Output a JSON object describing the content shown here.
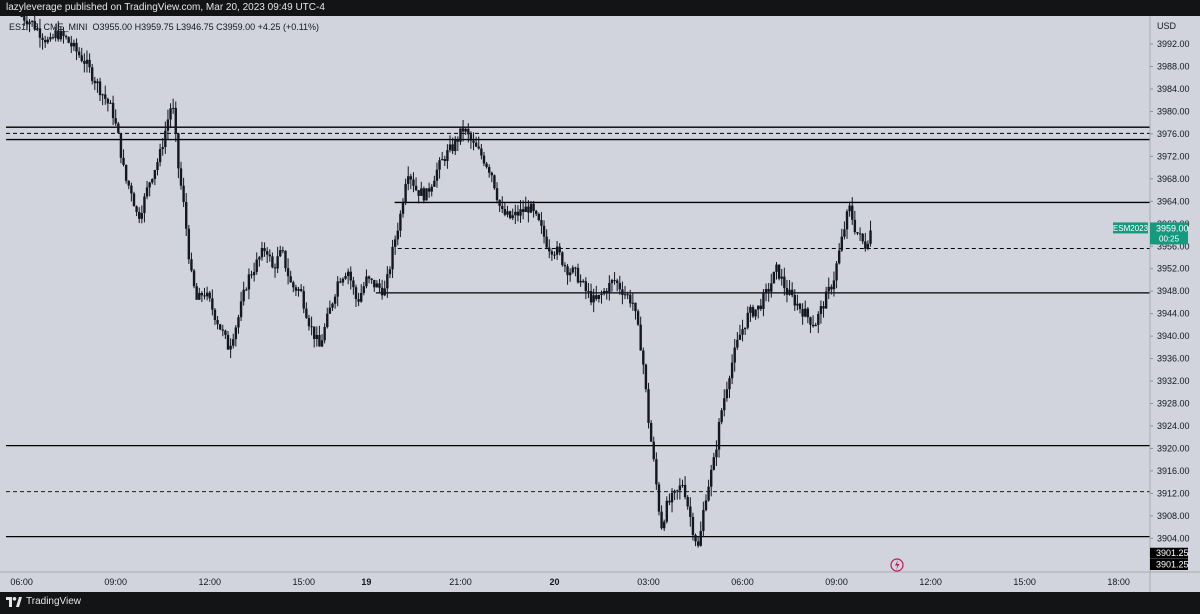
{
  "header": {
    "published_text": "lazyleverage published on TradingView.com, Mar 20, 2023 09:49 UTC-4"
  },
  "legend": {
    "symbol": "ES1!, 5, CME_MINI",
    "ohlc": "O3955.00  H3959.75  L3946.75  C3959.00  +4.25 (+0.11%)"
  },
  "footer": {
    "brand": "TradingView"
  },
  "colors": {
    "background": "#d1d4dc",
    "candle": "#131722",
    "label_green": "#159a7f",
    "label_black": "#000000",
    "line": "#000000"
  },
  "chart_data": {
    "type": "candlestick",
    "currency_label": "USD",
    "price_axis": {
      "min": 3898,
      "max": 3997,
      "ticks": [
        3992,
        3988,
        3984,
        3980,
        3976,
        3972,
        3968,
        3964,
        3960,
        3956,
        3952,
        3948,
        3944,
        3940,
        3936,
        3932,
        3928,
        3924,
        3920,
        3916,
        3912,
        3908,
        3904
      ],
      "tick_labels": [
        "3992.00",
        "3988.00",
        "3984.00",
        "3980.00",
        "3976.00",
        "3972.00",
        "3968.00",
        "3964.00",
        "3960.00",
        "3956.00",
        "3952.00",
        "3948.00",
        "3944.00",
        "3940.00",
        "3936.00",
        "3932.00",
        "3928.00",
        "3924.00",
        "3920.00",
        "3916.00",
        "3912.00",
        "3908.00",
        "3904.00"
      ]
    },
    "time_axis": {
      "labels": [
        {
          "label": "06:00",
          "t": 0
        },
        {
          "label": "09:00",
          "t": 3
        },
        {
          "label": "12:00",
          "t": 6
        },
        {
          "label": "15:00",
          "t": 9
        },
        {
          "label": "19",
          "t": 11
        },
        {
          "label": "21:00",
          "t": 14
        },
        {
          "label": "20",
          "t": 17
        },
        {
          "label": "03:00",
          "t": 20
        },
        {
          "label": "06:00",
          "t": 23
        },
        {
          "label": "09:00",
          "t": 26
        },
        {
          "label": "12:00",
          "t": 29
        },
        {
          "label": "15:00",
          "t": 32
        },
        {
          "label": "18:00",
          "t": 35
        }
      ]
    },
    "horizontal_lines": [
      {
        "price": 3977.2,
        "style": "solid"
      },
      {
        "price": 3976.1,
        "style": "dashed"
      },
      {
        "price": 3975.0,
        "style": "solid"
      },
      {
        "price": 3963.8,
        "style": "solid",
        "t_start": 11.9
      },
      {
        "price": 3955.6,
        "style": "dashed",
        "t_start": 12.0
      },
      {
        "price": 3947.7,
        "style": "solid",
        "t_start": 11.3
      },
      {
        "price": 3920.5,
        "style": "solid"
      },
      {
        "price": 3912.3,
        "style": "dashed"
      },
      {
        "price": 3904.3,
        "style": "solid"
      }
    ],
    "price_labels": [
      {
        "name": "ESM2023",
        "value": "3959.00",
        "countdown": "00:25",
        "price": 3959.0,
        "color": "#159a7f"
      },
      {
        "value": "3901.25",
        "price": 3901.25,
        "color": "#000000"
      },
      {
        "value": "3901.25",
        "price": 3899.25,
        "color": "#000000"
      }
    ],
    "close_path": [
      [
        0,
        3997
      ],
      [
        0.3,
        3996
      ],
      [
        0.6,
        3994
      ],
      [
        0.9,
        3992
      ],
      [
        1.1,
        3994
      ],
      [
        1.4,
        3993
      ],
      [
        1.7,
        3991
      ],
      [
        2.0,
        3989
      ],
      [
        2.3,
        3986
      ],
      [
        2.6,
        3983
      ],
      [
        2.9,
        3980
      ],
      [
        3.1,
        3975
      ],
      [
        3.3,
        3968
      ],
      [
        3.5,
        3966
      ],
      [
        3.7,
        3961
      ],
      [
        3.9,
        3964
      ],
      [
        4.1,
        3968
      ],
      [
        4.4,
        3972
      ],
      [
        4.6,
        3977
      ],
      [
        4.8,
        3982
      ],
      [
        5.0,
        3970
      ],
      [
        5.2,
        3962
      ],
      [
        5.4,
        3951
      ],
      [
        5.6,
        3946
      ],
      [
        5.8,
        3948
      ],
      [
        6.0,
        3946
      ],
      [
        6.3,
        3942
      ],
      [
        6.6,
        3938
      ],
      [
        6.9,
        3943
      ],
      [
        7.2,
        3950
      ],
      [
        7.5,
        3953
      ],
      [
        7.8,
        3956
      ],
      [
        8.0,
        3952
      ],
      [
        8.3,
        3955
      ],
      [
        8.6,
        3949
      ],
      [
        8.9,
        3948
      ],
      [
        9.2,
        3942
      ],
      [
        9.5,
        3938
      ],
      [
        9.8,
        3944
      ],
      [
        10.1,
        3950
      ],
      [
        10.4,
        3952
      ],
      [
        10.7,
        3946
      ],
      [
        11.0,
        3950
      ],
      [
        11.3,
        3949
      ],
      [
        11.6,
        3948
      ],
      [
        11.9,
        3957
      ],
      [
        12.1,
        3962
      ],
      [
        12.3,
        3970
      ],
      [
        12.6,
        3966
      ],
      [
        12.9,
        3965
      ],
      [
        13.2,
        3969
      ],
      [
        13.5,
        3972
      ],
      [
        13.8,
        3974
      ],
      [
        14.1,
        3977
      ],
      [
        14.4,
        3974
      ],
      [
        14.7,
        3972
      ],
      [
        15.0,
        3969
      ],
      [
        15.3,
        3962
      ],
      [
        15.6,
        3961
      ],
      [
        15.9,
        3962
      ],
      [
        16.2,
        3963
      ],
      [
        16.5,
        3960
      ],
      [
        16.8,
        3956
      ],
      [
        17.1,
        3955
      ],
      [
        17.4,
        3952
      ],
      [
        17.7,
        3951
      ],
      [
        18.0,
        3948
      ],
      [
        18.3,
        3946
      ],
      [
        18.6,
        3948
      ],
      [
        18.9,
        3950
      ],
      [
        19.2,
        3948
      ],
      [
        19.5,
        3946
      ],
      [
        19.8,
        3937
      ],
      [
        20.0,
        3925
      ],
      [
        20.2,
        3916
      ],
      [
        20.4,
        3906
      ],
      [
        20.6,
        3910
      ],
      [
        20.9,
        3912
      ],
      [
        21.1,
        3914
      ],
      [
        21.4,
        3906
      ],
      [
        21.6,
        3902
      ],
      [
        21.8,
        3911
      ],
      [
        22.1,
        3918
      ],
      [
        22.3,
        3926
      ],
      [
        22.6,
        3934
      ],
      [
        22.9,
        3940
      ],
      [
        23.2,
        3944
      ],
      [
        23.5,
        3945
      ],
      [
        23.8,
        3948
      ],
      [
        24.1,
        3952
      ],
      [
        24.4,
        3948
      ],
      [
        24.7,
        3946
      ],
      [
        25.0,
        3944
      ],
      [
        25.3,
        3942
      ],
      [
        25.6,
        3946
      ],
      [
        25.9,
        3950
      ],
      [
        26.2,
        3958
      ],
      [
        26.4,
        3963
      ],
      [
        26.6,
        3959
      ],
      [
        26.9,
        3956
      ],
      [
        27.1,
        3959
      ]
    ]
  }
}
